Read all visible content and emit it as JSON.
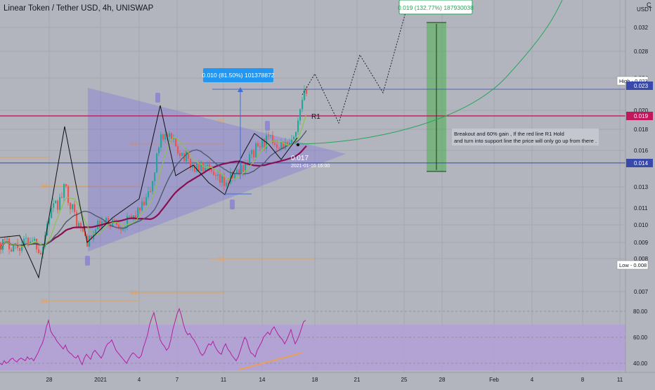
{
  "header": {
    "title": "Linear Token / Tether USD, 4h, UNISWAP",
    "currency": "USDT"
  },
  "colors": {
    "background": "#b2b5be",
    "grid": "#a4a7b0",
    "candle_up": "#26a69a",
    "candle_down": "#ef5350",
    "red_line": "#c2185b",
    "blue_line": "#3949ab",
    "projection_green": "#26a65b",
    "triangle": "#7b6ee0",
    "rsi_band": "#b39ddb",
    "rsi_line": "#b0209e",
    "ma_slow": "#880e4f",
    "ma_mid": "#4e5b6e",
    "ma_fast": "#8bc34a",
    "pivot_orange": "#e6a05a",
    "label_blue": "#2196f3",
    "label_green": "#26a65b"
  },
  "chart_data": {
    "type": "candlestick",
    "x_ticks": [
      "28",
      "2021",
      "4",
      "7",
      "11",
      "14",
      "18",
      "21",
      "25",
      "28",
      "Feb",
      "4",
      "8",
      "11"
    ],
    "y_ticks": [
      "0.032",
      "0.028",
      "0.024",
      "0.020",
      "0.018",
      "0.016",
      "0.013",
      "0.011",
      "0.010",
      "0.009",
      "0.008",
      "0.007"
    ],
    "price_labels": [
      {
        "text": "High - 0.023",
        "value": 0.0234,
        "style": "outline"
      },
      {
        "text": "0.023",
        "value": 0.0227,
        "style": "blue"
      },
      {
        "text": "0.019",
        "value": 0.019,
        "style": "red"
      },
      {
        "text": "0.014",
        "value": 0.0144,
        "style": "blue"
      },
      {
        "text": "Low - 0.008",
        "value": 0.0079,
        "style": "outline"
      }
    ],
    "horizontal_lines": [
      {
        "name": "R1",
        "value": 0.019,
        "color": "red"
      },
      {
        "name": "support",
        "value": 0.0144,
        "color": "blue"
      },
      {
        "name": "high",
        "value": 0.0227,
        "color": "blue"
      }
    ],
    "measure_labels": [
      {
        "text": "0.010 (81.50%) 101378872",
        "style": "blue"
      },
      {
        "text": "0.019 (132.77%) 187930038",
        "style": "green-outline"
      }
    ],
    "annotations": {
      "r1_label": "R1",
      "price_point": "0.017",
      "price_point_date": "2021-01-16 16:00",
      "note_line1": "Breakout and 60% gain , If the red line R1 Hold",
      "note_line2": "and turn into support line the price will only go up from there ."
    },
    "pivot_labels": [
      "R1",
      "R1",
      "R1",
      "S1",
      "S1",
      "R1"
    ],
    "rsi": {
      "ticks": [
        "80.00",
        "60.00",
        "40.00"
      ],
      "values": [
        40,
        39,
        42,
        40,
        41,
        43,
        44,
        42,
        41,
        43,
        44,
        43,
        42,
        45,
        43,
        44,
        42,
        45,
        48,
        52,
        55,
        60,
        68,
        73,
        65,
        62,
        60,
        57,
        55,
        53,
        51,
        54,
        50,
        48,
        47,
        45,
        44,
        46,
        42,
        39,
        44,
        47,
        45,
        43,
        48,
        50,
        48,
        46,
        44,
        47,
        52,
        55,
        56,
        58,
        54,
        50,
        48,
        46,
        44,
        42,
        40,
        43,
        46,
        48,
        47,
        45,
        44,
        46,
        52,
        57,
        62,
        70,
        75,
        79,
        72,
        65,
        58,
        55,
        53,
        50,
        52,
        58,
        66,
        72,
        78,
        82,
        77,
        70,
        65,
        62,
        63,
        60,
        58,
        55,
        52,
        48,
        46,
        48,
        52,
        55,
        54,
        57,
        53,
        50,
        48,
        47,
        52,
        55,
        51,
        49,
        46,
        44,
        42,
        45,
        50,
        55,
        60,
        58,
        52,
        48,
        47,
        45,
        50,
        53,
        56,
        60,
        62,
        64,
        62,
        66,
        68,
        65,
        62,
        60,
        58,
        55,
        58,
        62,
        66,
        60,
        55,
        58,
        62,
        67,
        72,
        73
      ]
    }
  }
}
